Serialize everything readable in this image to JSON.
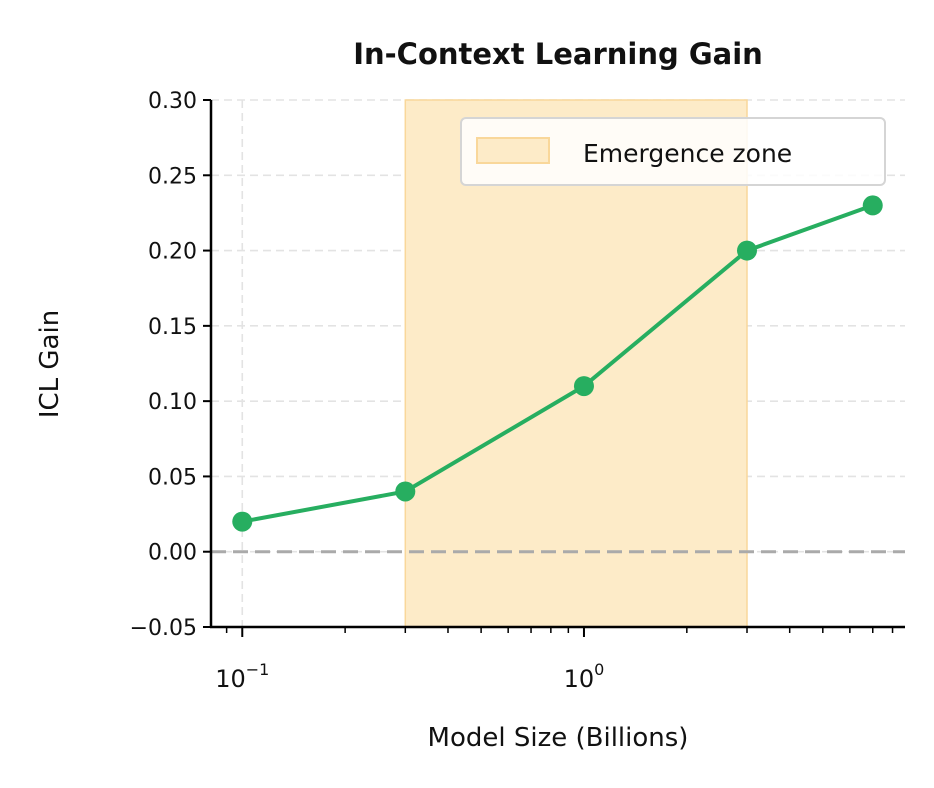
{
  "chart_data": {
    "type": "line",
    "title": "In-Context Learning Gain",
    "xlabel": "Model Size (Billions)",
    "ylabel": "ICL Gain",
    "xscale": "log",
    "xlim": [
      0.081,
      8.7
    ],
    "ylim": [
      -0.05,
      0.3
    ],
    "grid": true,
    "x_ticks": [
      {
        "value": 0.1,
        "base": "10",
        "exp": "−1"
      },
      {
        "value": 1,
        "base": "10",
        "exp": "0"
      }
    ],
    "y_ticks": [
      -0.05,
      0.0,
      0.05,
      0.1,
      0.15,
      0.2,
      0.25,
      0.3
    ],
    "y_tick_labels": [
      "−0.05",
      "0.00",
      "0.05",
      "0.10",
      "0.15",
      "0.20",
      "0.25",
      "0.30"
    ],
    "series": [
      {
        "x": [
          0.1,
          0.3,
          1,
          3,
          7
        ],
        "y": [
          0.02,
          0.04,
          0.11,
          0.2,
          0.23
        ],
        "color": "#27ae60"
      }
    ],
    "reference_line": {
      "y": 0,
      "color": "#aaaaaa",
      "style": "dashed"
    },
    "shaded_region": {
      "x": [
        0.3,
        3
      ],
      "label": "Emergence zone",
      "color": "#fdebc8",
      "edge": "#f9d79a"
    },
    "legend": {
      "placement": "top-right",
      "entries": [
        "Emergence zone"
      ]
    }
  }
}
